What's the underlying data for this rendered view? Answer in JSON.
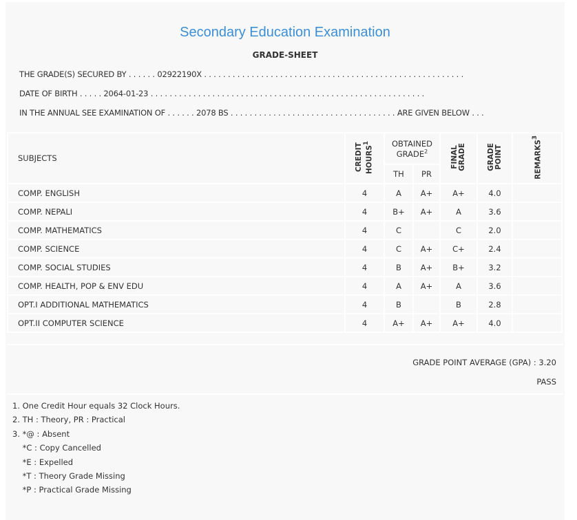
{
  "title": "Secondary Education Examination",
  "subtitle": "GRADE-SHEET",
  "lines": [
    "THE GRADE(S) SECURED BY . . . . . . 02922190X . . . . . . . . . . . . . . . . . . . . . . . . . . . . . . . . . . . . . . . . . . . . . . . . . . . . . . .",
    "DATE OF BIRTH . . . . . 2064-01-23 . . . . . . . . . . . . . . . . . . . . . . . . . . . . . . . . . . . . . . . . . . . . . . . . . . . . . . . . . .",
    "IN THE ANNUAL SEE EXAMINATION OF . . . . . . 2078 BS . . . . . . . . . . . . . . . . . . . . . . . . . . . . . . . . . . . ARE GIVEN BELOW . . ."
  ],
  "headers": {
    "subjects": "SUBJECTS",
    "credit": "CREDIT",
    "hours": "HOURS",
    "hours_sup": "1",
    "obtained": "OBTAINED",
    "grade": "GRADE",
    "grade_sup": "2",
    "th": "TH",
    "pr": "PR",
    "final1": "FINAL",
    "final2": "GRADE",
    "gp1": "GRADE",
    "gp2": "POINT",
    "remarks": "REMARKS",
    "remarks_sup": "3"
  },
  "rows": [
    {
      "subject": "COMP. ENGLISH",
      "ch": "4",
      "th": "A",
      "pr": "A+",
      "fg": "A+",
      "gp": "4.0"
    },
    {
      "subject": "COMP. NEPALI",
      "ch": "4",
      "th": "B+",
      "pr": "A+",
      "fg": "A",
      "gp": "3.6"
    },
    {
      "subject": "COMP. MATHEMATICS",
      "ch": "4",
      "th": "C",
      "pr": "",
      "fg": "C",
      "gp": "2.0"
    },
    {
      "subject": "COMP. SCIENCE",
      "ch": "4",
      "th": "C",
      "pr": "A+",
      "fg": "C+",
      "gp": "2.4"
    },
    {
      "subject": "COMP. SOCIAL STUDIES",
      "ch": "4",
      "th": "B",
      "pr": "A+",
      "fg": "B+",
      "gp": "3.2"
    },
    {
      "subject": "COMP. HEALTH, POP & ENV EDU",
      "ch": "4",
      "th": "A",
      "pr": "A+",
      "fg": "A",
      "gp": "3.6"
    },
    {
      "subject": "OPT.I ADDITIONAL MATHEMATICS",
      "ch": "4",
      "th": "B",
      "pr": "",
      "fg": "B",
      "gp": "2.8"
    },
    {
      "subject": "OPT.II COMPUTER SCIENCE",
      "ch": "4",
      "th": "A+",
      "pr": "A+",
      "fg": "A+",
      "gp": "4.0"
    }
  ],
  "gpa": "GRADE POINT AVERAGE (GPA) : 3.20",
  "result": "PASS",
  "notes": [
    "1. One Credit Hour equals 32 Clock Hours.",
    "2. TH : Theory, PR : Practical",
    "3. *@ : Absent",
    "    *C : Copy Cancelled",
    "    *E : Expelled",
    "    *T : Theory Grade Missing",
    "    *P : Practical Grade Missing"
  ]
}
